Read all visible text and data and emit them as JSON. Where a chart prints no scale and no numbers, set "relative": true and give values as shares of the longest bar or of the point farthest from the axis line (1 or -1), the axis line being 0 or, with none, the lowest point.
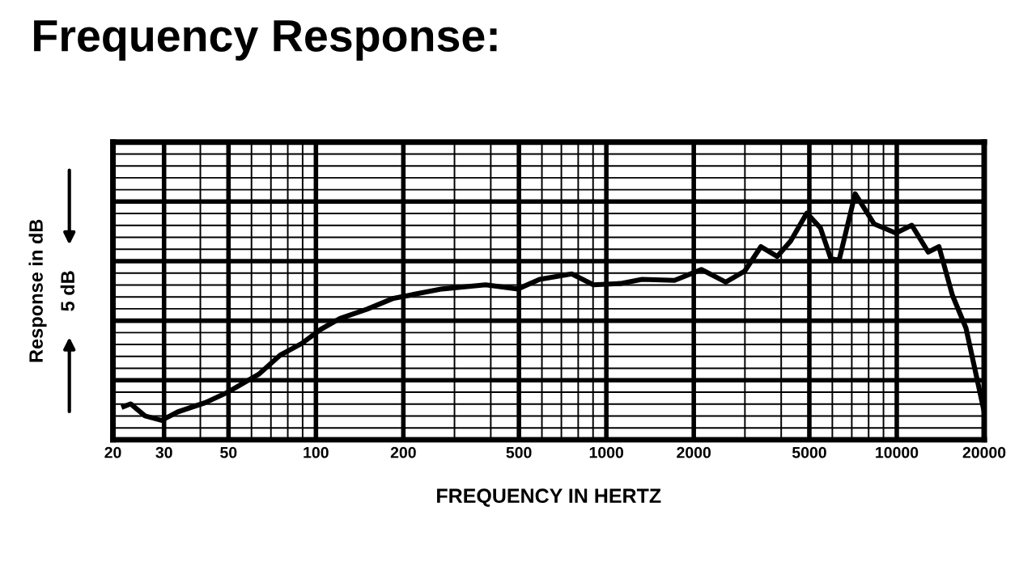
{
  "chart_data": {
    "type": "line",
    "title": "Frequency Response:",
    "xlabel": "FREQUENCY IN HERTZ",
    "ylabel": "Response in dB",
    "annotations": [
      "5 dB"
    ],
    "relative": true,
    "log": "x",
    "grid": true,
    "legend": false,
    "xlim": [
      20,
      20000
    ],
    "xticks": [
      20,
      30,
      50,
      100,
      200,
      500,
      1000,
      2000,
      5000,
      10000,
      20000
    ],
    "series": [
      {
        "color": "#000000",
        "line_style": "solid",
        "marker": "none",
        "x": [
          21.8,
          23,
          25.8,
          29.4,
          33.4,
          41.4,
          49.1,
          63.5,
          75.3,
          89.5,
          104,
          121,
          150,
          185,
          272,
          384,
          496,
          589,
          760,
          903,
          1117,
          1327,
          1717,
          2124,
          2577,
          2993,
          3406,
          3874,
          4308,
          4900,
          5460,
          5930,
          6330,
          7190,
          8360,
          9930,
          11270,
          12830,
          13970,
          15550,
          17310,
          20000
        ],
        "values": [
          0.135,
          0.146,
          0.097,
          0.079,
          0.113,
          0.15,
          0.19,
          0.266,
          0.344,
          0.392,
          0.449,
          0.493,
          0.531,
          0.575,
          0.613,
          0.63,
          0.613,
          0.652,
          0.674,
          0.63,
          0.635,
          0.652,
          0.648,
          0.692,
          0.641,
          0.685,
          0.785,
          0.745,
          0.807,
          0.921,
          0.861,
          0.736,
          0.73,
          1.0,
          0.877,
          0.84,
          0.872,
          0.763,
          0.785,
          0.587,
          0.454,
          0.113
        ]
      }
    ]
  }
}
